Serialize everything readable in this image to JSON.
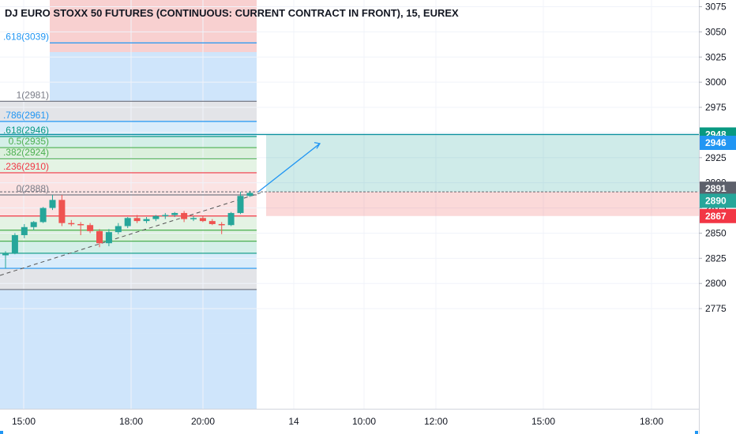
{
  "title": "DJ EURO STOXX 50 FUTURES (CONTINUOUS: CURRENT CONTRACT IN FRONT), 15, EUREX",
  "colors": {
    "up": "#26a69a",
    "down": "#ef5350",
    "fib_blue": "#2196f3",
    "fib_gray": "#787b86",
    "fib_teal": "#089981",
    "fib_green": "#4caf50",
    "fib_red": "#f23645",
    "tag_dark": "#5d606b"
  },
  "fib_levels": [
    {
      "label": ".618(3039)",
      "price": 3039,
      "color": "#2196f3"
    },
    {
      "label": "1(2981)",
      "price": 2981,
      "color": "#787b86"
    },
    {
      "label": ".786(2961)",
      "price": 2961,
      "color": "#2196f3"
    },
    {
      "label": ".618(2946)",
      "price": 2946,
      "color": "#089981"
    },
    {
      "label": "0.5(2935)",
      "price": 2935,
      "color": "#4caf50"
    },
    {
      "label": ".382(2924)",
      "price": 2924,
      "color": "#4caf50"
    },
    {
      "label": ".236(2910)",
      "price": 2910,
      "color": "#f23645"
    },
    {
      "label": "0(2888)",
      "price": 2888,
      "color": "#787b86"
    }
  ],
  "price_tags": [
    {
      "text": "2948",
      "price": 2948,
      "color": "#089981"
    },
    {
      "text": "2946",
      "price": 2946,
      "color": "#2196f3"
    },
    {
      "text": "2891",
      "price": 2891,
      "color": "#5d606b"
    },
    {
      "text": "2890",
      "price": 2890,
      "color": "#26a69a"
    },
    {
      "text": "2867",
      "price": 2867,
      "color": "#f23645"
    }
  ],
  "chart_data": {
    "type": "candlestick",
    "title": "DJ EURO STOXX 50 FUTURES (CONTINUOUS: CURRENT CONTRACT IN FRONT), 15, EUREX",
    "ylim": [
      2754,
      3084
    ],
    "y_ticks": [
      2775,
      2800,
      2825,
      2850,
      2875,
      2900,
      2925,
      2950,
      2975,
      3000,
      3025,
      3050,
      3075
    ],
    "x_ticks": [
      "15:00",
      "18:00",
      "20:00",
      "14",
      "10:00",
      "12:00",
      "15:00",
      "18:00"
    ],
    "candles": [
      {
        "o": 2828,
        "h": 2832,
        "l": 2815,
        "c": 2830
      },
      {
        "o": 2830,
        "h": 2850,
        "l": 2829,
        "c": 2848
      },
      {
        "o": 2848,
        "h": 2859,
        "l": 2845,
        "c": 2856
      },
      {
        "o": 2856,
        "h": 2862,
        "l": 2853,
        "c": 2861
      },
      {
        "o": 2861,
        "h": 2876,
        "l": 2860,
        "c": 2875
      },
      {
        "o": 2875,
        "h": 2888,
        "l": 2873,
        "c": 2883
      },
      {
        "o": 2883,
        "h": 2888,
        "l": 2857,
        "c": 2860
      },
      {
        "o": 2860,
        "h": 2863,
        "l": 2857,
        "c": 2859
      },
      {
        "o": 2859,
        "h": 2861,
        "l": 2848,
        "c": 2858
      },
      {
        "o": 2858,
        "h": 2860,
        "l": 2850,
        "c": 2852
      },
      {
        "o": 2852,
        "h": 2854,
        "l": 2836,
        "c": 2840
      },
      {
        "o": 2840,
        "h": 2854,
        "l": 2837,
        "c": 2851
      },
      {
        "o": 2851,
        "h": 2860,
        "l": 2849,
        "c": 2857
      },
      {
        "o": 2857,
        "h": 2866,
        "l": 2855,
        "c": 2865
      },
      {
        "o": 2865,
        "h": 2868,
        "l": 2860,
        "c": 2862
      },
      {
        "o": 2862,
        "h": 2866,
        "l": 2860,
        "c": 2864
      },
      {
        "o": 2864,
        "h": 2868,
        "l": 2862,
        "c": 2867
      },
      {
        "o": 2867,
        "h": 2870,
        "l": 2864,
        "c": 2868
      },
      {
        "o": 2868,
        "h": 2871,
        "l": 2866,
        "c": 2870
      },
      {
        "o": 2870,
        "h": 2872,
        "l": 2861,
        "c": 2864
      },
      {
        "o": 2864,
        "h": 2867,
        "l": 2862,
        "c": 2865
      },
      {
        "o": 2865,
        "h": 2867,
        "l": 2861,
        "c": 2862
      },
      {
        "o": 2862,
        "h": 2864,
        "l": 2858,
        "c": 2859
      },
      {
        "o": 2859,
        "h": 2861,
        "l": 2849,
        "c": 2858
      },
      {
        "o": 2858,
        "h": 2871,
        "l": 2857,
        "c": 2870
      },
      {
        "o": 2870,
        "h": 2891,
        "l": 2869,
        "c": 2887
      },
      {
        "o": 2887,
        "h": 2892,
        "l": 2886,
        "c": 2890
      }
    ],
    "position": {
      "entry": 2891,
      "target": 2948,
      "stop": 2867
    },
    "fib_retracement": {
      "zero": 2888,
      "one": 2981
    }
  }
}
